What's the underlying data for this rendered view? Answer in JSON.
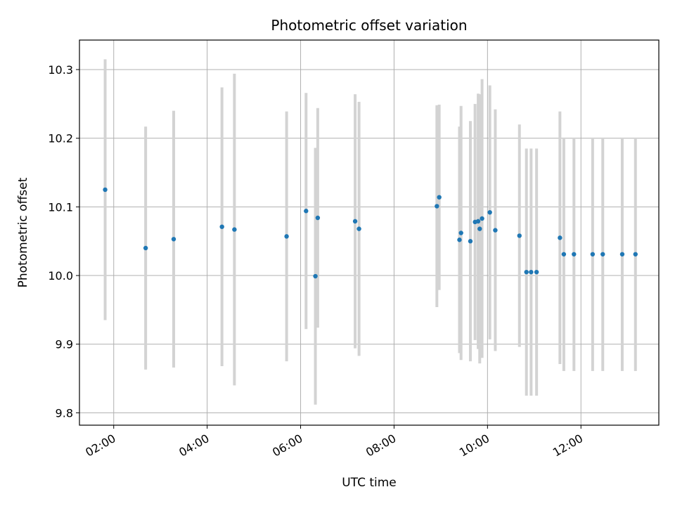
{
  "chart_data": {
    "type": "scatter",
    "title": "Photometric offset variation",
    "xlabel": "UTC time",
    "ylabel": "Photometric offset",
    "grid": true,
    "xlim": [
      "01:16",
      "13:40"
    ],
    "ylim": [
      9.782,
      10.343
    ],
    "x_ticks": [
      "02:00",
      "04:00",
      "06:00",
      "08:00",
      "10:00",
      "12:00"
    ],
    "y_ticks": [
      9.8,
      9.9,
      10.0,
      10.1,
      10.2,
      10.3
    ],
    "colors": {
      "marker": "#1f77b4",
      "errorbar": "#d3d3d3",
      "grid": "#b0b0b0"
    },
    "points": [
      {
        "x": "01:49",
        "y": 10.125,
        "err": 0.19
      },
      {
        "x": "02:41",
        "y": 10.04,
        "err": 0.177
      },
      {
        "x": "03:17",
        "y": 10.053,
        "err": 0.187
      },
      {
        "x": "04:19",
        "y": 10.071,
        "err": 0.203
      },
      {
        "x": "04:35",
        "y": 10.067,
        "err": 0.227
      },
      {
        "x": "05:42",
        "y": 10.057,
        "err": 0.182
      },
      {
        "x": "06:07",
        "y": 10.094,
        "err": 0.172
      },
      {
        "x": "06:19",
        "y": 9.999,
        "err": 0.187
      },
      {
        "x": "06:22",
        "y": 10.084,
        "err": 0.16
      },
      {
        "x": "07:10",
        "y": 10.079,
        "err": 0.185
      },
      {
        "x": "07:15",
        "y": 10.068,
        "err": 0.185
      },
      {
        "x": "08:55",
        "y": 10.101,
        "err": 0.147
      },
      {
        "x": "08:58",
        "y": 10.114,
        "err": 0.135
      },
      {
        "x": "09:24",
        "y": 10.052,
        "err": 0.165
      },
      {
        "x": "09:26",
        "y": 10.062,
        "err": 0.185
      },
      {
        "x": "09:38",
        "y": 10.05,
        "err": 0.175
      },
      {
        "x": "09:44",
        "y": 10.078,
        "err": 0.172
      },
      {
        "x": "09:48",
        "y": 10.079,
        "err": 0.186
      },
      {
        "x": "09:50",
        "y": 10.068,
        "err": 0.196
      },
      {
        "x": "09:53",
        "y": 10.083,
        "err": 0.203
      },
      {
        "x": "10:03",
        "y": 10.092,
        "err": 0.185
      },
      {
        "x": "10:10",
        "y": 10.066,
        "err": 0.176
      },
      {
        "x": "10:41",
        "y": 10.058,
        "err": 0.162
      },
      {
        "x": "10:50",
        "y": 10.005,
        "err": 0.18
      },
      {
        "x": "10:56",
        "y": 10.005,
        "err": 0.18
      },
      {
        "x": "11:03",
        "y": 10.005,
        "err": 0.18
      },
      {
        "x": "11:33",
        "y": 10.055,
        "err": 0.184
      },
      {
        "x": "11:38",
        "y": 10.031,
        "err": 0.17
      },
      {
        "x": "11:51",
        "y": 10.031,
        "err": 0.17
      },
      {
        "x": "12:15",
        "y": 10.031,
        "err": 0.17
      },
      {
        "x": "12:28",
        "y": 10.031,
        "err": 0.17
      },
      {
        "x": "12:53",
        "y": 10.031,
        "err": 0.17
      },
      {
        "x": "13:10",
        "y": 10.031,
        "err": 0.17
      }
    ]
  }
}
